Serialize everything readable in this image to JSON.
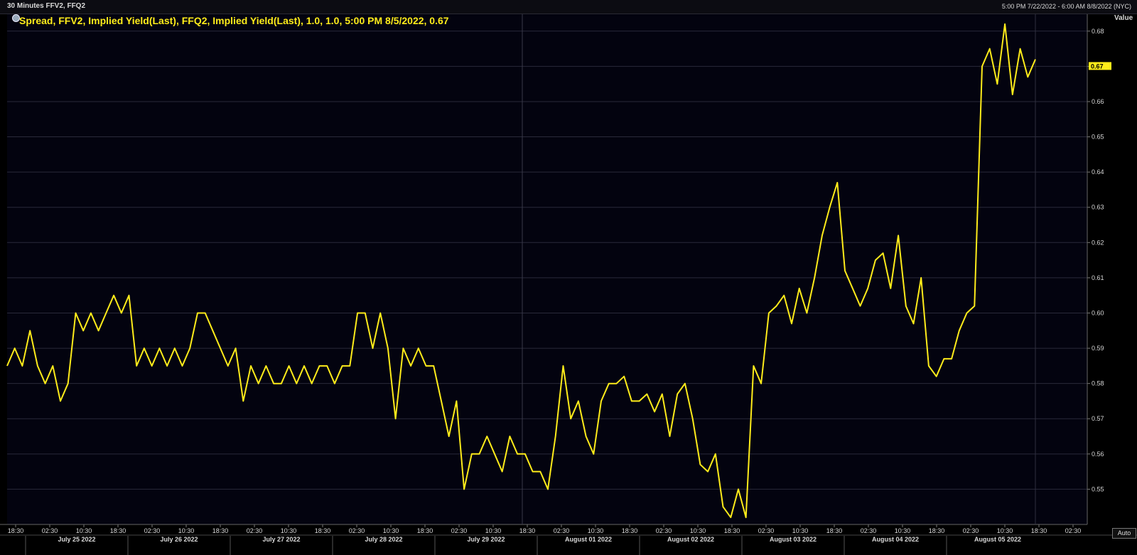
{
  "header": {
    "title": "30 Minutes FFV2, FFQ2",
    "range": "5:00 PM 7/22/2022 - 6:00 AM 8/8/2022 (NYC)"
  },
  "legend": {
    "text": "Spread, FFV2, Implied Yield(Last), FFQ2, Implied Yield(Last),  1.0, 1.0, 5:00 PM 8/5/2022, 0.67"
  },
  "axis": {
    "value_title": "Value",
    "last_value_label": "0.67",
    "auto_label": "Auto"
  },
  "colors": {
    "background": "#03030f",
    "series": "#ffec1a",
    "grid": "#2a2a3a",
    "axis_text": "#d8d8d8"
  },
  "chart_data": {
    "type": "line",
    "title": "",
    "xlabel": "",
    "ylabel": "Value",
    "ylim": [
      0.54,
      0.685
    ],
    "yticks": [
      0.55,
      0.56,
      0.57,
      0.58,
      0.59,
      0.6,
      0.61,
      0.62,
      0.63,
      0.64,
      0.65,
      0.66,
      0.67,
      0.68
    ],
    "xlim": [
      0,
      104
    ],
    "x_tick_labels": [
      "18:30",
      "02:30",
      "10:30",
      "18:30",
      "02:30",
      "10:30",
      "18:30",
      "02:30",
      "10:30",
      "18:30",
      "02:30",
      "10:30",
      "18:30",
      "02:30",
      "10:30",
      "18:30",
      "02:30",
      "10:30",
      "18:30",
      "02:30",
      "10:30",
      "18:30",
      "02:30",
      "10:30",
      "18:30",
      "02:30",
      "10:30",
      "18:30",
      "02:30",
      "10:30",
      "18:30",
      "02:30"
    ],
    "date_labels": [
      "July 25 2022",
      "July 26 2022",
      "July 27 2022",
      "July 28 2022",
      "July 29 2022",
      "August 01 2022",
      "August 02 2022",
      "August 03 2022",
      "August 04 2022",
      "August 05 2022"
    ],
    "grid": true,
    "series": [
      {
        "name": "Spread",
        "values": [
          0.585,
          0.59,
          0.585,
          0.595,
          0.585,
          0.58,
          0.585,
          0.575,
          0.58,
          0.6,
          0.595,
          0.6,
          0.595,
          0.6,
          0.605,
          0.6,
          0.605,
          0.585,
          0.59,
          0.585,
          0.59,
          0.585,
          0.59,
          0.585,
          0.59,
          0.6,
          0.6,
          0.595,
          0.59,
          0.585,
          0.59,
          0.575,
          0.585,
          0.58,
          0.585,
          0.58,
          0.58,
          0.585,
          0.58,
          0.585,
          0.58,
          0.585,
          0.585,
          0.58,
          0.585,
          0.585,
          0.6,
          0.6,
          0.59,
          0.6,
          0.59,
          0.57,
          0.59,
          0.585,
          0.59,
          0.585,
          0.585,
          0.575,
          0.565,
          0.575,
          0.55,
          0.56,
          0.56,
          0.565,
          0.56,
          0.555,
          0.565,
          0.56,
          0.56,
          0.555,
          0.555,
          0.55,
          0.565,
          0.585,
          0.57,
          0.575,
          0.565,
          0.56,
          0.575,
          0.58,
          0.58,
          0.582,
          0.575,
          0.575,
          0.577,
          0.572,
          0.577,
          0.565,
          0.577,
          0.58,
          0.57,
          0.557,
          0.555,
          0.56,
          0.545,
          0.542,
          0.55,
          0.542,
          0.585,
          0.58,
          0.6,
          0.602,
          0.605,
          0.597,
          0.607,
          0.6,
          0.61,
          0.622,
          0.63,
          0.637,
          0.612,
          0.607,
          0.602,
          0.607,
          0.615,
          0.617,
          0.607,
          0.622,
          0.602,
          0.597,
          0.61,
          0.585,
          0.582,
          0.587,
          0.587,
          0.595,
          0.6,
          0.602,
          0.67,
          0.675,
          0.665,
          0.682,
          0.662,
          0.675,
          0.667,
          0.672
        ]
      }
    ]
  }
}
